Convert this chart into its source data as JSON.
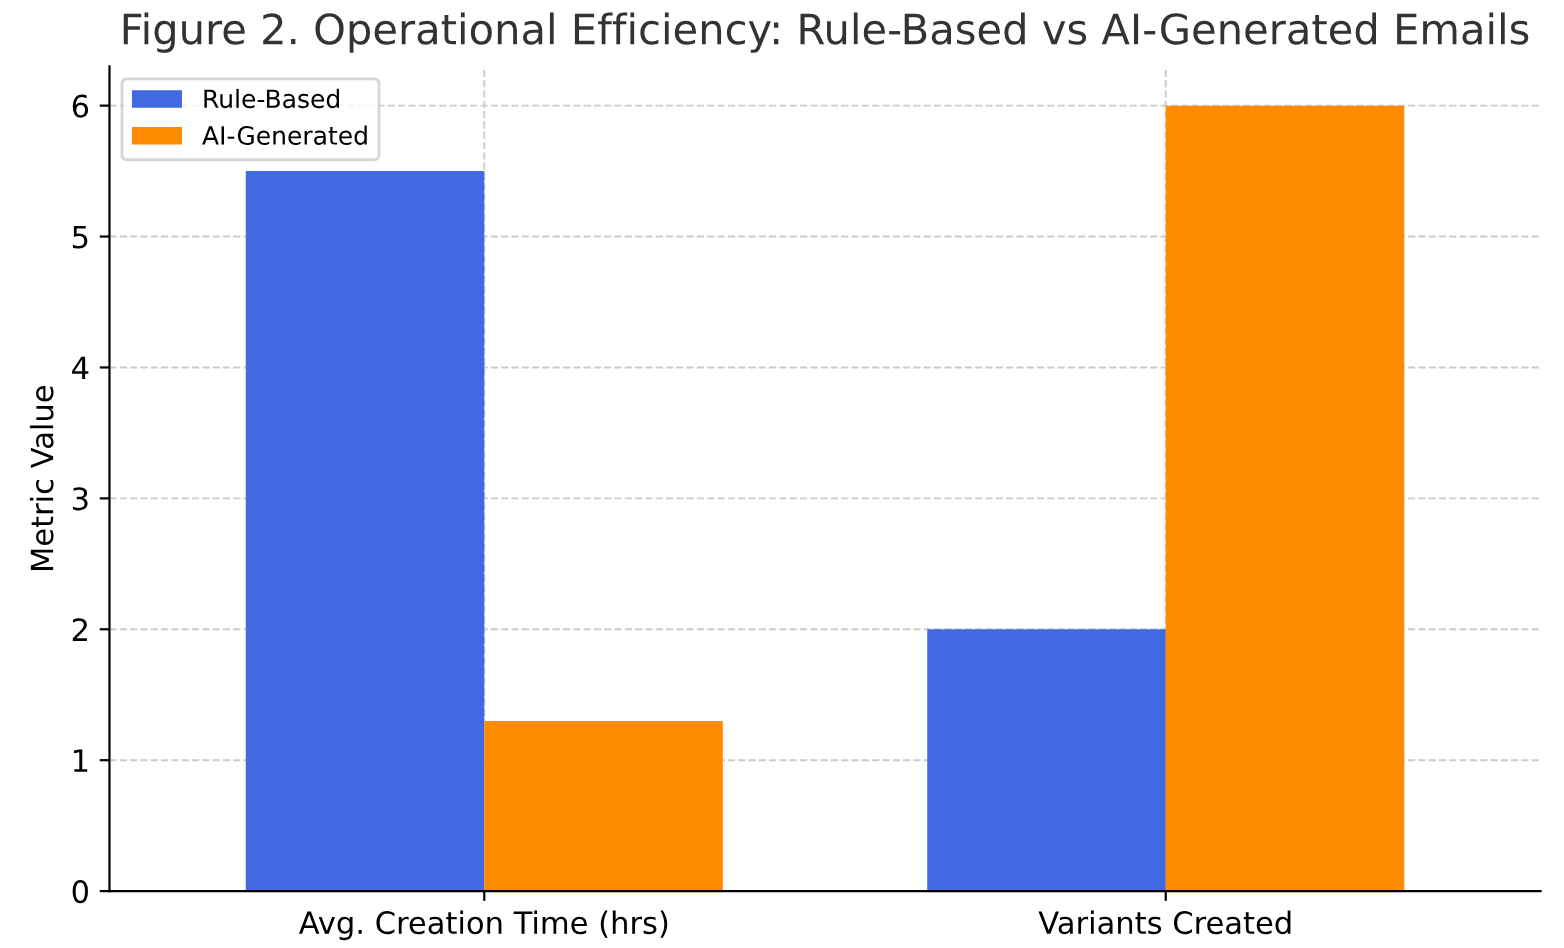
{
  "chart_data": {
    "type": "bar",
    "title": "Figure 2. Operational Efficiency: Rule-Based vs AI-Generated Emails",
    "ylabel": "Metric Value",
    "categories": [
      "Avg. Creation Time (hrs)",
      "Variants Created"
    ],
    "series": [
      {
        "name": "Rule-Based",
        "color": "#4169e1",
        "values": [
          5.5,
          2
        ]
      },
      {
        "name": "AI-Generated",
        "color": "#ff8c00",
        "values": [
          1.3,
          6
        ]
      }
    ],
    "ylim": [
      0,
      6.3
    ],
    "yticks": [
      0,
      1,
      2,
      3,
      4,
      5,
      6
    ],
    "grid": true,
    "legend": "top left"
  }
}
